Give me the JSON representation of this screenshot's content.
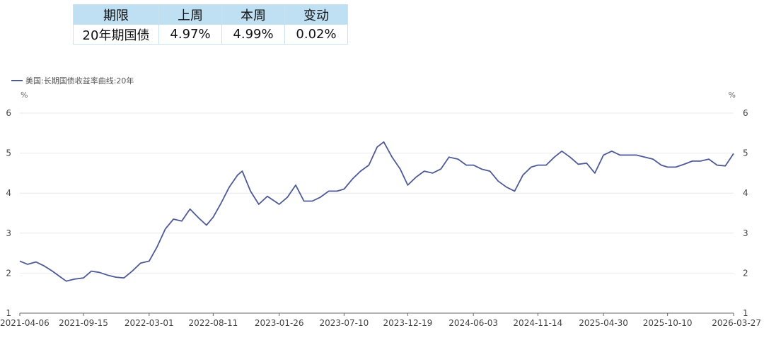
{
  "table": {
    "header": [
      "期限",
      "上周",
      "本周",
      "变动"
    ],
    "row": [
      "20年期国债",
      "4.97%",
      "4.99%",
      "0.02%"
    ]
  },
  "legend": {
    "series_name": "美国:长期国债收益率曲线:20年"
  },
  "colors": {
    "line": "#4e5a96",
    "grid": "#e8e8ee",
    "table_header": "#bfe0f3"
  },
  "chart_data": {
    "type": "line",
    "title": "",
    "xlabel": "",
    "ylabel": "%",
    "y2label": "%",
    "ylim": [
      1,
      6
    ],
    "yticks": [
      1,
      2,
      3,
      4,
      5,
      6
    ],
    "xlim": [
      "2021-04-06",
      "2026-03-27"
    ],
    "xticks": [
      "2021-04-06",
      "2021-09-15",
      "2022-03-01",
      "2022-08-11",
      "2023-01-26",
      "2023-07-10",
      "2023-12-19",
      "2024-06-03",
      "2024-11-14",
      "2025-04-30",
      "2025-10-10",
      "2026-03-27"
    ],
    "grid": true,
    "legend_position": "top-left",
    "series": [
      {
        "name": "美国:长期国债收益率曲线:20年",
        "x": [
          "2021-04-06",
          "2021-04-26",
          "2021-05-17",
          "2021-06-07",
          "2021-06-28",
          "2021-07-19",
          "2021-08-02",
          "2021-08-23",
          "2021-09-15",
          "2021-10-05",
          "2021-10-25",
          "2021-11-15",
          "2021-12-06",
          "2021-12-27",
          "2022-01-17",
          "2022-02-07",
          "2022-03-01",
          "2022-03-21",
          "2022-04-11",
          "2022-05-02",
          "2022-05-23",
          "2022-06-13",
          "2022-07-05",
          "2022-07-25",
          "2022-08-11",
          "2022-08-31",
          "2022-09-21",
          "2022-10-12",
          "2022-10-24",
          "2022-11-14",
          "2022-12-05",
          "2022-12-27",
          "2023-01-26",
          "2023-02-16",
          "2023-03-09",
          "2023-03-30",
          "2023-04-20",
          "2023-05-11",
          "2023-06-01",
          "2023-06-22",
          "2023-07-10",
          "2023-07-31",
          "2023-08-21",
          "2023-09-11",
          "2023-10-02",
          "2023-10-19",
          "2023-11-09",
          "2023-11-30",
          "2023-12-19",
          "2024-01-09",
          "2024-01-30",
          "2024-02-20",
          "2024-03-12",
          "2024-04-02",
          "2024-04-25",
          "2024-05-16",
          "2024-06-03",
          "2024-06-24",
          "2024-07-15",
          "2024-08-05",
          "2024-08-26",
          "2024-09-16",
          "2024-10-07",
          "2024-10-28",
          "2024-11-14",
          "2024-12-05",
          "2024-12-26",
          "2025-01-14",
          "2025-02-04",
          "2025-02-25",
          "2025-03-18",
          "2025-04-08",
          "2025-04-30",
          "2025-05-21",
          "2025-06-11",
          "2025-07-02",
          "2025-07-23",
          "2025-08-13",
          "2025-09-03",
          "2025-09-24",
          "2025-10-10",
          "2025-10-31",
          "2025-11-21",
          "2025-12-12",
          "2026-01-02",
          "2026-01-23",
          "2026-02-13",
          "2026-03-06",
          "2026-03-27"
        ],
        "y": [
          2.3,
          2.22,
          2.28,
          2.18,
          2.05,
          1.9,
          1.8,
          1.85,
          1.88,
          2.05,
          2.02,
          1.95,
          1.9,
          1.88,
          2.05,
          2.25,
          2.3,
          2.65,
          3.1,
          3.35,
          3.3,
          3.6,
          3.38,
          3.2,
          3.4,
          3.75,
          4.15,
          4.45,
          4.55,
          4.05,
          3.72,
          3.92,
          3.72,
          3.9,
          4.2,
          3.8,
          3.8,
          3.9,
          4.05,
          4.05,
          4.1,
          4.35,
          4.55,
          4.7,
          5.15,
          5.28,
          4.9,
          4.6,
          4.2,
          4.4,
          4.55,
          4.5,
          4.6,
          4.9,
          4.85,
          4.7,
          4.7,
          4.6,
          4.55,
          4.3,
          4.15,
          4.05,
          4.45,
          4.65,
          4.7,
          4.7,
          4.9,
          5.05,
          4.9,
          4.72,
          4.75,
          4.5,
          4.95,
          5.05,
          4.95,
          4.95,
          4.95,
          4.9,
          4.85,
          4.7,
          4.65,
          4.65,
          4.72,
          4.8,
          4.8,
          4.85,
          4.7,
          4.68,
          4.99
        ]
      }
    ]
  }
}
